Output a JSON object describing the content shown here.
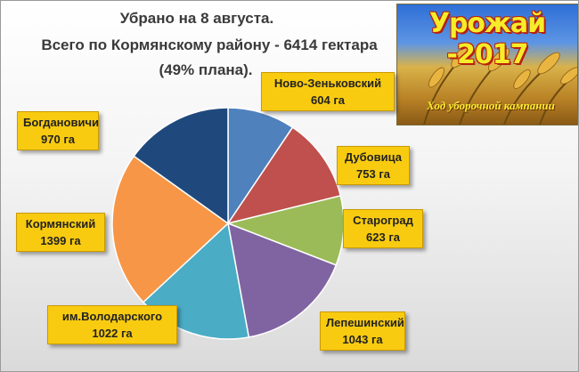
{
  "title_lines": [
    "Убрано на 8 августа.",
    "Всего по Кормянскому району -  6414 гектара",
    "(49% плана)."
  ],
  "banner": {
    "title": "Урожай -2017",
    "subtitle": "Ход уборочной кампании"
  },
  "chart_data": {
    "type": "pie",
    "unit": "га",
    "categories": [
      "Ново-Зеньковский",
      "Дубовица",
      "Староград",
      "Лепешинский",
      "им.Володарского",
      "Кормянский",
      "Богдановичи"
    ],
    "values": [
      604,
      753,
      623,
      1043,
      1022,
      1399,
      970
    ],
    "value_labels": [
      "604 га",
      "753 га",
      "623 га",
      "1043 га",
      "1022 га",
      "1399 га",
      "970 га"
    ],
    "colors": [
      "#4f81bd",
      "#c0504d",
      "#9bbb59",
      "#8064a2",
      "#4bacc6",
      "#f79646",
      "#1f497d"
    ],
    "start": "12 o'clock",
    "direction": "clockwise",
    "legend": "none"
  }
}
